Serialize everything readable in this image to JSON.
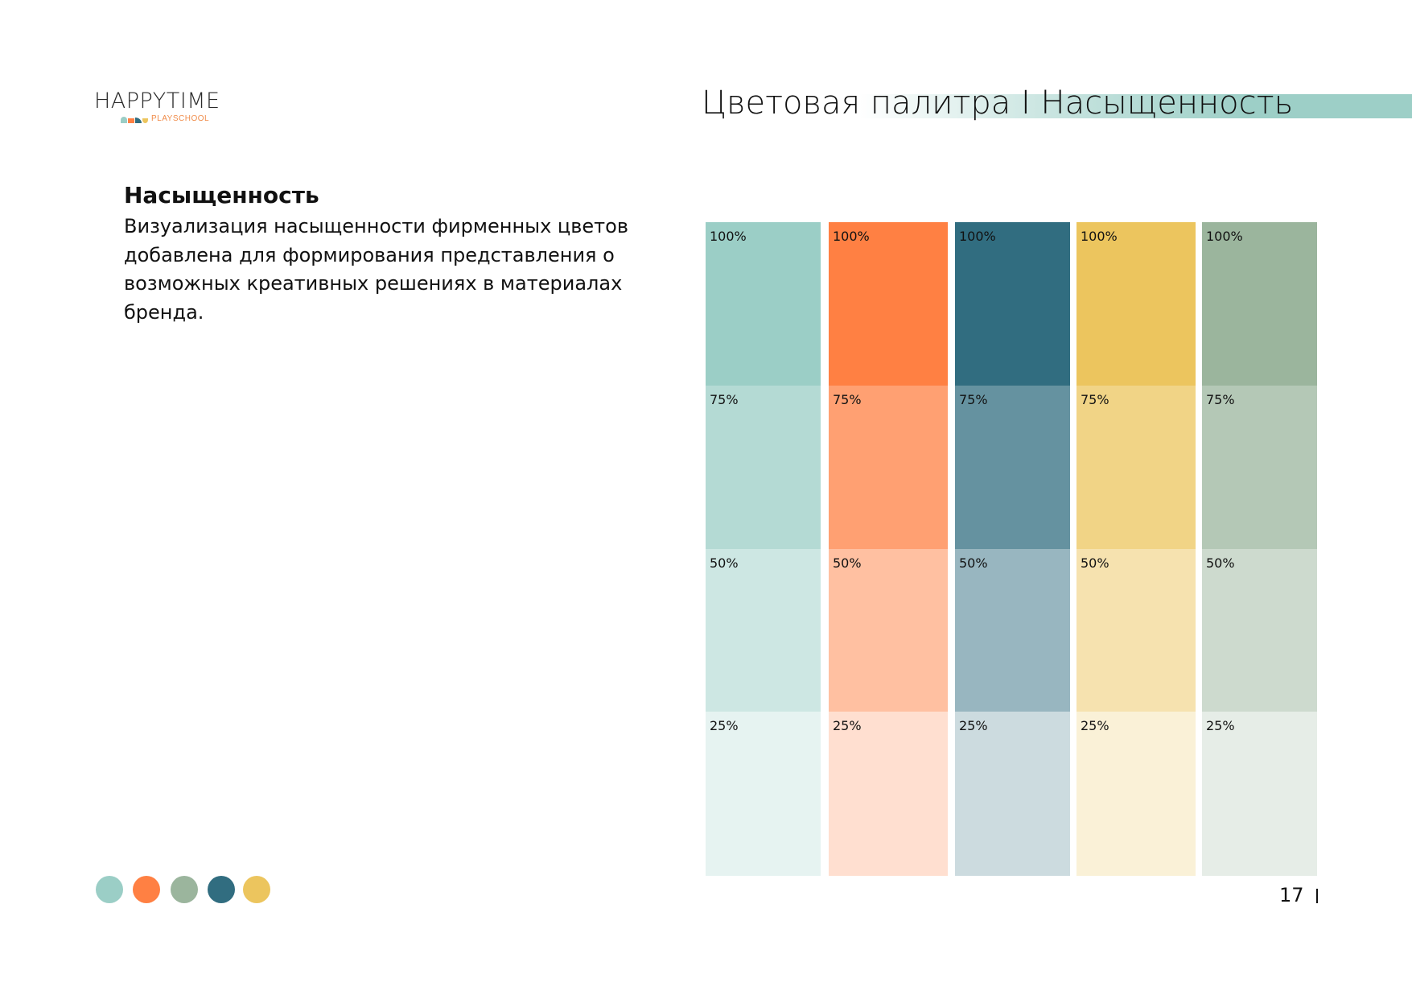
{
  "logo": {
    "wordmark": "HAPPYTIME",
    "subtitle": "PLAYSCHOOL",
    "mark_colors": [
      "#9bcec6",
      "#ff8043",
      "#316d80",
      "#ecc55e"
    ]
  },
  "header": {
    "title": "Цветовая палитра І Насыщенность",
    "band_color": "#9dcfc7"
  },
  "section": {
    "title": "Насыщенность",
    "body": "Визуализация насыщенности фирменных цветов добавлена для формирования представления о возможных креативных решениях в материалах бренда."
  },
  "palette": {
    "tints": [
      {
        "label": "100%",
        "opacity": 1.0
      },
      {
        "label": "75%",
        "opacity": 0.75
      },
      {
        "label": "50%",
        "opacity": 0.5
      },
      {
        "label": "25%",
        "opacity": 0.25
      }
    ],
    "colors": [
      {
        "name": "mint",
        "hex": "#9bcec6"
      },
      {
        "name": "orange",
        "hex": "#ff8043"
      },
      {
        "name": "petrol",
        "hex": "#316d80"
      },
      {
        "name": "mustard",
        "hex": "#ecc55e"
      },
      {
        "name": "sage",
        "hex": "#9bb59d"
      }
    ]
  },
  "footer_dots": [
    {
      "name": "mint",
      "hex": "#9bcec6"
    },
    {
      "name": "orange",
      "hex": "#ff8043"
    },
    {
      "name": "sage",
      "hex": "#9bb59d"
    },
    {
      "name": "petrol",
      "hex": "#316d80"
    },
    {
      "name": "mustard",
      "hex": "#ecc55e"
    }
  ],
  "page_number": "17"
}
